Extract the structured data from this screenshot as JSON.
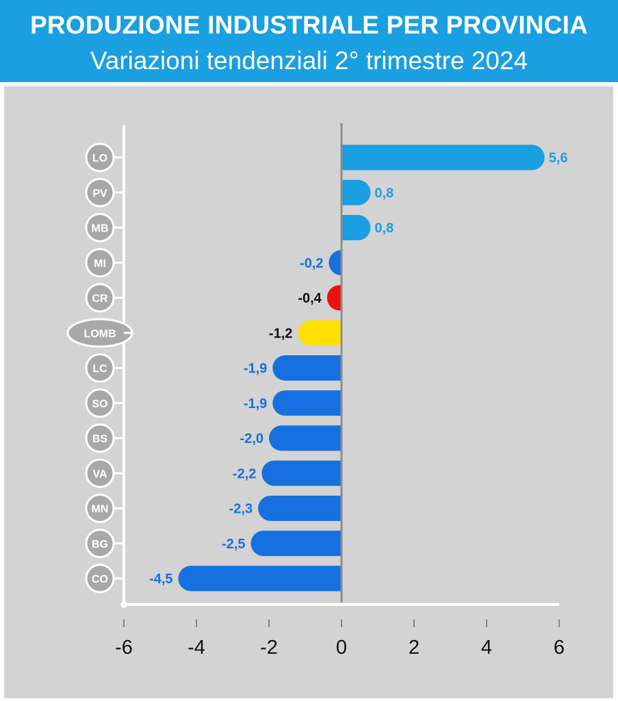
{
  "header": {
    "title": "PRODUZIONE INDUSTRIALE PER PROVINCIA",
    "subtitle": "Variazioni tendenziali 2° trimestre 2024"
  },
  "colors": {
    "header_bg": "#1a9fe0",
    "panel_bg": "#d3d3d3",
    "positive": "#1a9fe0",
    "negative": "#1670e0",
    "highlight_red": "#ee1111",
    "highlight_yellow": "#ffe000"
  },
  "chart_data": {
    "type": "bar",
    "orientation": "horizontal",
    "title": "PRODUZIONE INDUSTRIALE PER PROVINCIA",
    "subtitle": "Variazioni tendenziali 2° trimestre 2024",
    "categories": [
      "LO",
      "PV",
      "MB",
      "MI",
      "CR",
      "LOMB",
      "LC",
      "SO",
      "BS",
      "VA",
      "MN",
      "BG",
      "CO"
    ],
    "values": [
      5.6,
      0.8,
      0.8,
      -0.2,
      -0.4,
      -1.2,
      -1.9,
      -1.9,
      -2.0,
      -2.2,
      -2.3,
      -2.5,
      -4.5
    ],
    "labels": [
      "5,6",
      "0,8",
      "0,8",
      "-0,2",
      "-0,4",
      "-1,2",
      "-1,9",
      "-1,9",
      "-2,0",
      "-2,2",
      "-2,3",
      "-2,5",
      "-4,5"
    ],
    "bar_colors": [
      "#1a9fe0",
      "#1a9fe0",
      "#1a9fe0",
      "#1670e0",
      "#ee1111",
      "#ffe000",
      "#1670e0",
      "#1670e0",
      "#1670e0",
      "#1670e0",
      "#1670e0",
      "#1670e0",
      "#1670e0"
    ],
    "label_colors": [
      "#1a9fe0",
      "#1a9fe0",
      "#1a9fe0",
      "#1670e0",
      "#111111",
      "#111111",
      "#1670e0",
      "#1670e0",
      "#1670e0",
      "#1670e0",
      "#1670e0",
      "#1670e0",
      "#1670e0"
    ],
    "xlim": [
      -6,
      6
    ],
    "xticks": [
      -6,
      -4,
      -2,
      0,
      2,
      4,
      6
    ],
    "xtick_labels": [
      "-6",
      "-4",
      "-2",
      "0",
      "2",
      "4",
      "6"
    ],
    "xlabel": "",
    "ylabel": "",
    "grid": false,
    "legend": "none"
  }
}
